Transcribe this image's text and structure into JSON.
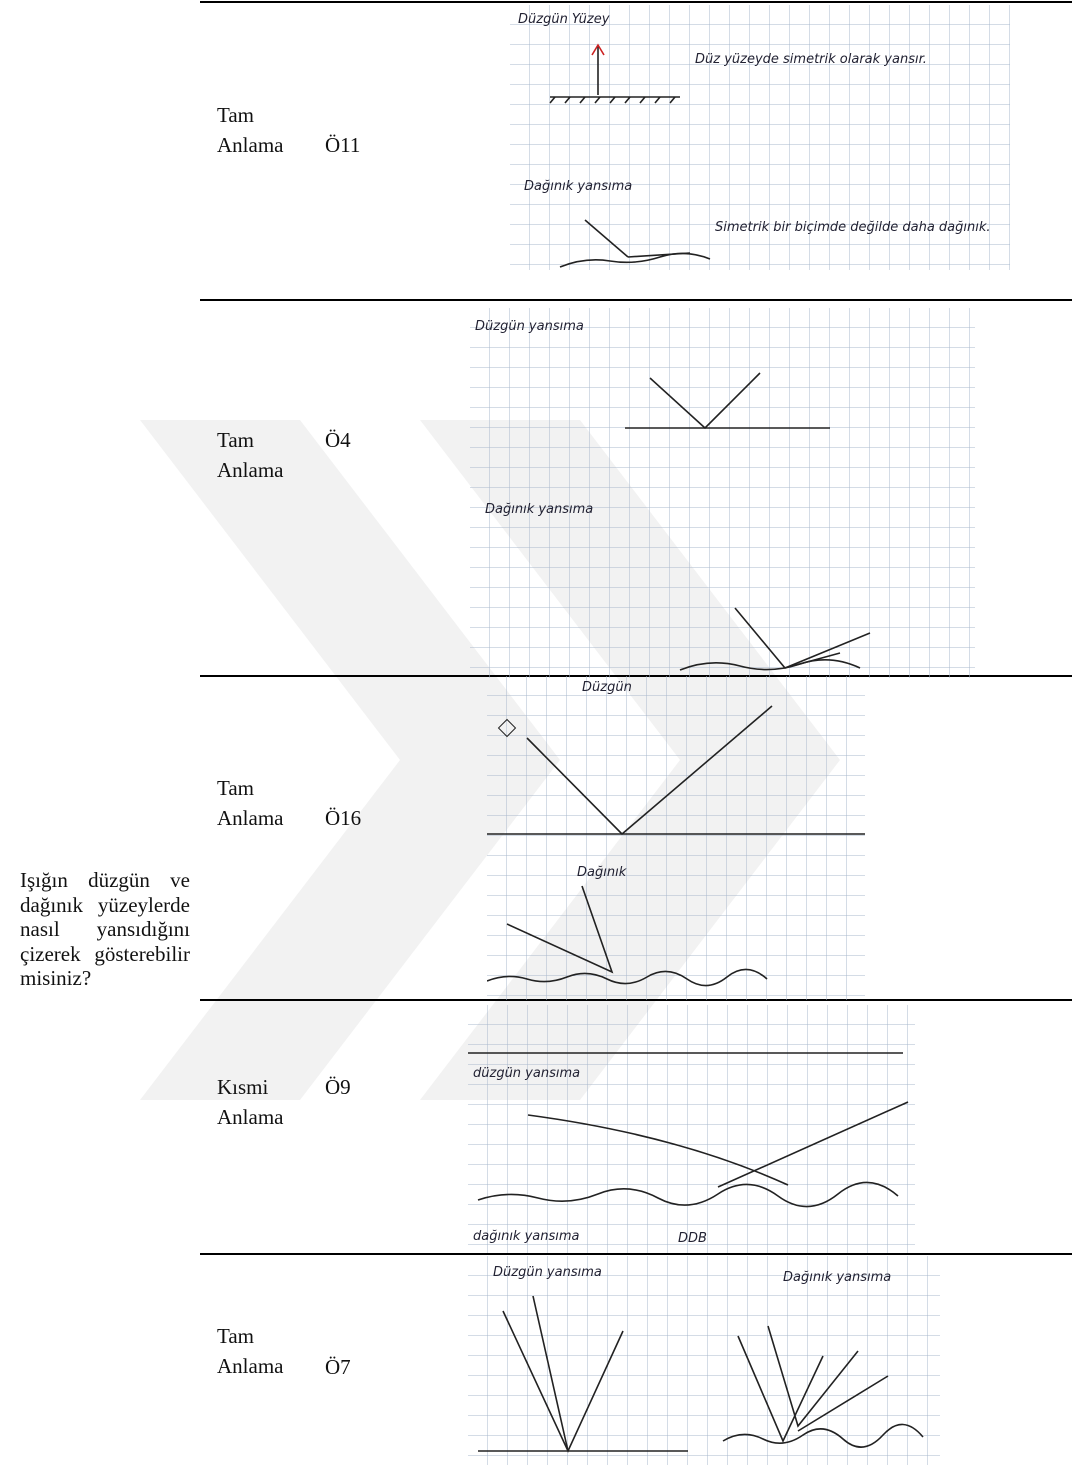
{
  "question": "Işığın düzgün ve dağınık yüzeylerde nasıl yansıdığını çizerek gösterebilir misiniz?",
  "rows": [
    {
      "level": "Tam Anlama",
      "code": "Ö11",
      "drawing": [
        "Düzgün Yüzey",
        "Düz yüzeyde simetrik olarak yansır.",
        "Dağınık yansıma",
        "Simetrik bir biçimde değilde daha dağınık."
      ]
    },
    {
      "level": "Tam Anlama",
      "code": "Ö4",
      "drawing": [
        "Düzgün yansıma",
        "Dağınık yansıma"
      ]
    },
    {
      "level": "Tam Anlama",
      "code": "Ö16",
      "drawing": [
        "Düzgün",
        "Dağınık"
      ]
    },
    {
      "level": "Kısmi Anlama",
      "code": "Ö9",
      "drawing": [
        "düzgün yansıma",
        "dağınık yansıma",
        "DDB"
      ]
    },
    {
      "level": "Tam Anlama",
      "code": "Ö7",
      "drawing": [
        "Düzgün yansıma",
        "Dağınık yansıma"
      ]
    }
  ]
}
